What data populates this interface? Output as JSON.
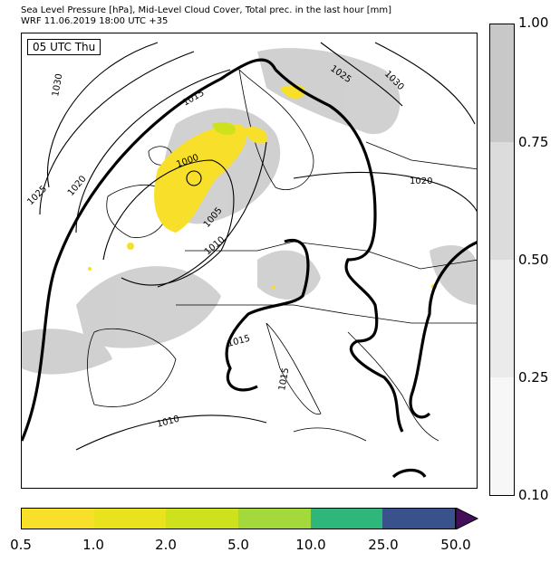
{
  "title": {
    "line1": "Sea Level Pressure [hPa], Mid-Level Cloud Cover, Total prec. in the last hour [mm]",
    "line2": "WRF 11.06.2019 18:00 UTC +35"
  },
  "time_label": "05 UTC Thu",
  "isobar_labels": [
    "1030",
    "1025",
    "1020",
    "1015",
    "1000",
    "1005",
    "1010",
    "1025",
    "1030",
    "1020",
    "1015",
    "1015",
    "1010"
  ],
  "cloud_colorbar": {
    "ticks": [
      "1.00",
      "0.75",
      "0.50",
      "0.25",
      "0.10"
    ],
    "colors": [
      "#c8c8c8",
      "#dcdcdc",
      "#ebebeb",
      "#f7f7f7"
    ]
  },
  "precip_colorbar": {
    "ticks": [
      "0.5",
      "1.0",
      "2.0",
      "5.0",
      "10.0",
      "25.0",
      "50.0"
    ],
    "colors": [
      "#f8e02a",
      "#e9e21f",
      "#cde11d",
      "#a3d93a",
      "#2fb67a",
      "#3a528b",
      "#430f5a"
    ]
  }
}
